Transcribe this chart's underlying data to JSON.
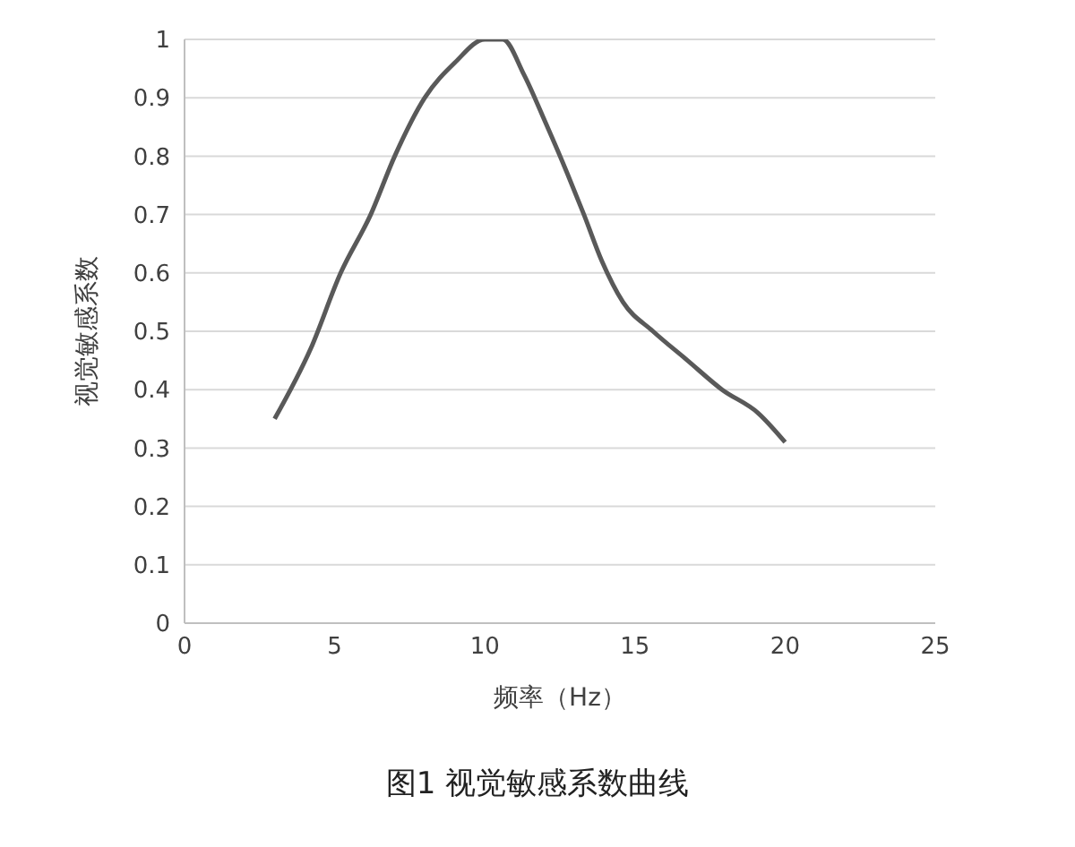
{
  "chart_data": {
    "type": "line",
    "title": "图1 视觉敏感系数曲线",
    "xlabel": "频率（Hz）",
    "ylabel": "视觉敏感系数",
    "series": [
      {
        "color": "#595959",
        "x": [
          3,
          4.2,
          5.2,
          6.2,
          7,
          8,
          9,
          10,
          10.6,
          11.3,
          12,
          12.75,
          13.3,
          13.9,
          14.6,
          15.6,
          16.75,
          17.9,
          19.1,
          20
        ],
        "values": [
          0.35,
          0.47,
          0.6,
          0.7,
          0.8,
          0.9,
          0.96,
          1,
          1,
          0.94,
          0.86,
          0.77,
          0.7,
          0.62,
          0.55,
          0.5,
          0.45,
          0.4,
          0.36,
          0.31
        ]
      }
    ],
    "xlim": [
      0,
      25
    ],
    "xticks": [
      0,
      5,
      10,
      15,
      20,
      25
    ],
    "ylim": [
      0,
      1
    ],
    "yticks": [
      0,
      0.1,
      0.2,
      0.3,
      0.4,
      0.5,
      0.6,
      0.7,
      0.8,
      0.9,
      1
    ],
    "grid": "y",
    "marker": "none",
    "line_style": "solid",
    "legend": false
  }
}
